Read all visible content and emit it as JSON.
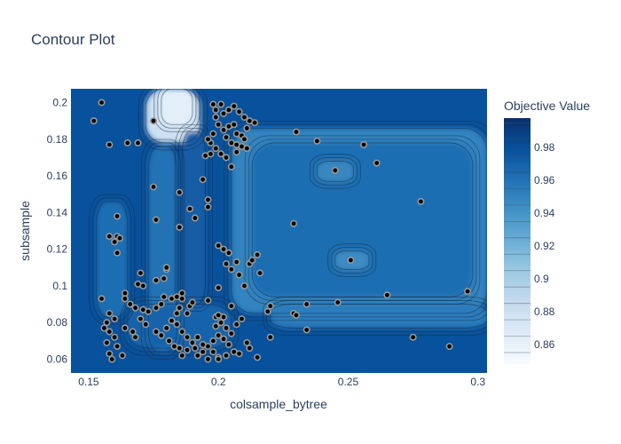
{
  "chart_data": {
    "type": "contour",
    "title": "Contour Plot",
    "xlabel": "colsample_bytree",
    "ylabel": "subsample",
    "xlim": [
      0.1432,
      0.3035
    ],
    "ylim": [
      0.0525,
      0.2075
    ],
    "x_ticks": [
      0.15,
      0.2,
      0.25,
      0.3
    ],
    "x_tick_labels": [
      "0.15",
      "0.2",
      "0.25",
      "0.3"
    ],
    "y_ticks": [
      0.06,
      0.08,
      0.1,
      0.12,
      0.14,
      0.16,
      0.18,
      0.2
    ],
    "y_tick_labels": [
      "0.06",
      "0.08",
      "0.1",
      "0.12",
      "0.14",
      "0.16",
      "0.18",
      "0.2"
    ],
    "colorbar": {
      "title": "Objective Value",
      "range": [
        0.848,
        0.998
      ],
      "ticks": [
        0.86,
        0.88,
        0.9,
        0.92,
        0.94,
        0.96,
        0.98
      ],
      "tick_labels": [
        "0.86",
        "0.88",
        "0.9",
        "0.92",
        "0.94",
        "0.96",
        "0.98"
      ],
      "levels": [
        0.855,
        0.865,
        0.875,
        0.885,
        0.895,
        0.905,
        0.915,
        0.925,
        0.935,
        0.945,
        0.955,
        0.965,
        0.975,
        0.985,
        0.995
      ],
      "colorscale": [
        "#f7fbff",
        "#deebf7",
        "#c6dbef",
        "#9ecae1",
        "#6baed6",
        "#4292c6",
        "#2171b5",
        "#08519c",
        "#08306b"
      ]
    },
    "background_color": "#08519c",
    "regions": [
      {
        "name": "right-plateau",
        "x": [
          0.205,
          0.3035
        ],
        "y": [
          0.085,
          0.186
        ],
        "value": 0.95
      },
      {
        "name": "right-plateau-inner",
        "x": [
          0.213,
          0.298
        ],
        "y": [
          0.094,
          0.178
        ],
        "value": 0.962
      },
      {
        "name": "top-left-peak",
        "x": [
          0.172,
          0.193
        ],
        "y": [
          0.178,
          0.2075
        ],
        "value": 0.88
      },
      {
        "name": "top-left-peak-core",
        "x": [
          0.178,
          0.19
        ],
        "y": [
          0.188,
          0.2075
        ],
        "value": 0.862
      },
      {
        "name": "left-band",
        "x": [
          0.153,
          0.165
        ],
        "y": [
          0.083,
          0.146
        ],
        "value": 0.962
      },
      {
        "name": "mid-left-band",
        "x": [
          0.173,
          0.184
        ],
        "y": [
          0.064,
          0.176
        ],
        "value": 0.96
      },
      {
        "name": "vertical-streak",
        "x": [
          0.186,
          0.195
        ],
        "y": [
          0.09,
          0.184
        ],
        "value": 0.972
      },
      {
        "name": "bottom-band",
        "x": [
          0.165,
          0.205
        ],
        "y": [
          0.066,
          0.09
        ],
        "value": 0.968
      },
      {
        "name": "bottom-right-streak",
        "x": [
          0.22,
          0.3035
        ],
        "y": [
          0.077,
          0.09
        ],
        "value": 0.955
      },
      {
        "name": "blob-1",
        "x": [
          0.238,
          0.252
        ],
        "y": [
          0.157,
          0.168
        ],
        "value": 0.948
      },
      {
        "name": "blob-2",
        "x": [
          0.245,
          0.258
        ],
        "y": [
          0.109,
          0.119
        ],
        "value": 0.945
      }
    ],
    "trials": [
      [
        0.155,
        0.2
      ],
      [
        0.152,
        0.19
      ],
      [
        0.175,
        0.19
      ],
      [
        0.158,
        0.177
      ],
      [
        0.169,
        0.178
      ],
      [
        0.165,
        0.178
      ],
      [
        0.175,
        0.154
      ],
      [
        0.176,
        0.136
      ],
      [
        0.161,
        0.138
      ],
      [
        0.158,
        0.127
      ],
      [
        0.161,
        0.127
      ],
      [
        0.161,
        0.118
      ],
      [
        0.16,
        0.124
      ],
      [
        0.162,
        0.126
      ],
      [
        0.189,
        0.142
      ],
      [
        0.185,
        0.132
      ],
      [
        0.185,
        0.151
      ],
      [
        0.191,
        0.137
      ],
      [
        0.196,
        0.143
      ],
      [
        0.196,
        0.147
      ],
      [
        0.194,
        0.158
      ],
      [
        0.195,
        0.171
      ],
      [
        0.197,
        0.172
      ],
      [
        0.17,
        0.107
      ],
      [
        0.176,
        0.103
      ],
      [
        0.179,
        0.104
      ],
      [
        0.18,
        0.109
      ],
      [
        0.18,
        0.11
      ],
      [
        0.179,
        0.094
      ],
      [
        0.169,
        0.101
      ],
      [
        0.171,
        0.1
      ],
      [
        0.164,
        0.096
      ],
      [
        0.164,
        0.093
      ],
      [
        0.155,
        0.093
      ],
      [
        0.166,
        0.09
      ],
      [
        0.168,
        0.088
      ],
      [
        0.171,
        0.087
      ],
      [
        0.173,
        0.086
      ],
      [
        0.176,
        0.088
      ],
      [
        0.178,
        0.09
      ],
      [
        0.182,
        0.093
      ],
      [
        0.184,
        0.094
      ],
      [
        0.186,
        0.093
      ],
      [
        0.189,
        0.089
      ],
      [
        0.188,
        0.085
      ],
      [
        0.184,
        0.085
      ],
      [
        0.185,
        0.088
      ],
      [
        0.158,
        0.085
      ],
      [
        0.16,
        0.082
      ],
      [
        0.157,
        0.08
      ],
      [
        0.156,
        0.077
      ],
      [
        0.158,
        0.075
      ],
      [
        0.16,
        0.072
      ],
      [
        0.157,
        0.069
      ],
      [
        0.161,
        0.067
      ],
      [
        0.158,
        0.063
      ],
      [
        0.159,
        0.06
      ],
      [
        0.163,
        0.062
      ],
      [
        0.164,
        0.077
      ],
      [
        0.167,
        0.075
      ],
      [
        0.168,
        0.072
      ],
      [
        0.17,
        0.082
      ],
      [
        0.172,
        0.079
      ],
      [
        0.176,
        0.075
      ],
      [
        0.178,
        0.073
      ],
      [
        0.18,
        0.077
      ],
      [
        0.182,
        0.081
      ],
      [
        0.184,
        0.079
      ],
      [
        0.186,
        0.075
      ],
      [
        0.188,
        0.072
      ],
      [
        0.19,
        0.069
      ],
      [
        0.191,
        0.066
      ],
      [
        0.192,
        0.062
      ],
      [
        0.194,
        0.064
      ],
      [
        0.196,
        0.067
      ],
      [
        0.198,
        0.07
      ],
      [
        0.2,
        0.073
      ],
      [
        0.202,
        0.071
      ],
      [
        0.204,
        0.068
      ],
      [
        0.206,
        0.064
      ],
      [
        0.208,
        0.063
      ],
      [
        0.2,
        0.061
      ],
      [
        0.198,
        0.064
      ],
      [
        0.196,
        0.06
      ],
      [
        0.194,
        0.068
      ],
      [
        0.192,
        0.072
      ],
      [
        0.199,
        0.078
      ],
      [
        0.201,
        0.08
      ],
      [
        0.203,
        0.077
      ],
      [
        0.205,
        0.074
      ],
      [
        0.207,
        0.079
      ],
      [
        0.209,
        0.082
      ],
      [
        0.202,
        0.083
      ],
      [
        0.199,
        0.083
      ],
      [
        0.185,
        0.066
      ],
      [
        0.186,
        0.062
      ],
      [
        0.188,
        0.065
      ],
      [
        0.183,
        0.067
      ],
      [
        0.181,
        0.07
      ],
      [
        0.2,
        0.084
      ],
      [
        0.205,
        0.089
      ],
      [
        0.2,
        0.099
      ],
      [
        0.196,
        0.092
      ],
      [
        0.19,
        0.091
      ],
      [
        0.186,
        0.096
      ],
      [
        0.202,
        0.185
      ],
      [
        0.204,
        0.187
      ],
      [
        0.206,
        0.188
      ],
      [
        0.207,
        0.183
      ],
      [
        0.209,
        0.182
      ],
      [
        0.203,
        0.181
      ],
      [
        0.205,
        0.178
      ],
      [
        0.207,
        0.177
      ],
      [
        0.199,
        0.196
      ],
      [
        0.201,
        0.199
      ],
      [
        0.202,
        0.194
      ],
      [
        0.204,
        0.196
      ],
      [
        0.206,
        0.198
      ],
      [
        0.208,
        0.195
      ],
      [
        0.21,
        0.192
      ],
      [
        0.212,
        0.19
      ],
      [
        0.214,
        0.189
      ],
      [
        0.211,
        0.186
      ],
      [
        0.209,
        0.176
      ],
      [
        0.207,
        0.173
      ],
      [
        0.203,
        0.17
      ],
      [
        0.201,
        0.172
      ],
      [
        0.199,
        0.175
      ],
      [
        0.197,
        0.178
      ],
      [
        0.196,
        0.18
      ],
      [
        0.198,
        0.183
      ],
      [
        0.2,
        0.188
      ],
      [
        0.199,
        0.192
      ],
      [
        0.198,
        0.199
      ],
      [
        0.21,
        0.18
      ],
      [
        0.211,
        0.175
      ],
      [
        0.205,
        0.165
      ],
      [
        0.2,
        0.122
      ],
      [
        0.202,
        0.12
      ],
      [
        0.204,
        0.118
      ],
      [
        0.203,
        0.112
      ],
      [
        0.205,
        0.109
      ],
      [
        0.207,
        0.113
      ],
      [
        0.208,
        0.106
      ],
      [
        0.21,
        0.1
      ],
      [
        0.212,
        0.112
      ],
      [
        0.213,
        0.114
      ],
      [
        0.215,
        0.117
      ],
      [
        0.216,
        0.107
      ],
      [
        0.219,
        0.086
      ],
      [
        0.22,
        0.089
      ],
      [
        0.229,
        0.085
      ],
      [
        0.23,
        0.084
      ],
      [
        0.234,
        0.09
      ],
      [
        0.229,
        0.134
      ],
      [
        0.23,
        0.184
      ],
      [
        0.238,
        0.179
      ],
      [
        0.245,
        0.163
      ],
      [
        0.251,
        0.114
      ],
      [
        0.256,
        0.177
      ],
      [
        0.261,
        0.167
      ],
      [
        0.265,
        0.095
      ],
      [
        0.275,
        0.072
      ],
      [
        0.278,
        0.146
      ],
      [
        0.289,
        0.067
      ],
      [
        0.296,
        0.097
      ],
      [
        0.234,
        0.076
      ],
      [
        0.22,
        0.072
      ],
      [
        0.215,
        0.061
      ],
      [
        0.246,
        0.091
      ],
      [
        0.2,
        0.06
      ],
      [
        0.203,
        0.062
      ],
      [
        0.211,
        0.069
      ],
      [
        0.212,
        0.066
      ]
    ],
    "trial_style": {
      "fill": "#000000",
      "stroke": "#999999"
    }
  }
}
